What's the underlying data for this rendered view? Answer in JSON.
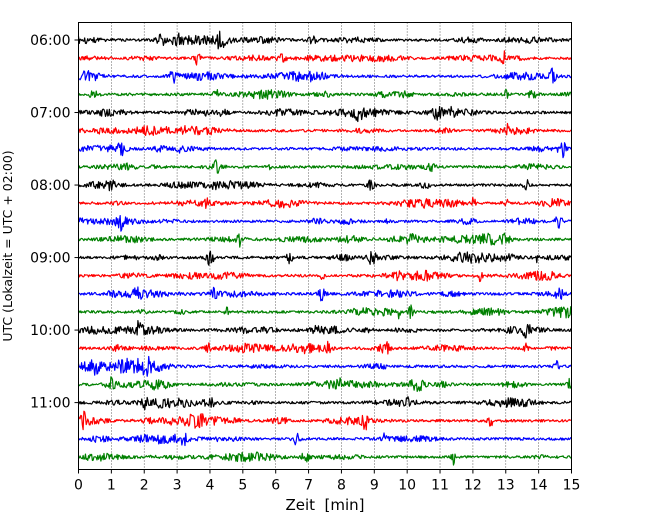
{
  "chart_data": {
    "type": "line",
    "title": "",
    "xlabel": "Zeit  [min]",
    "ylabel": "UTC (Lokalzeit = UTC + 02:00)",
    "xlim": [
      0,
      15
    ],
    "x_ticks": [
      0,
      1,
      2,
      3,
      4,
      5,
      6,
      7,
      8,
      9,
      10,
      11,
      12,
      13,
      14,
      15
    ],
    "x_tick_labels": [
      "0",
      "1",
      "2",
      "3",
      "4",
      "5",
      "6",
      "7",
      "8",
      "9",
      "10",
      "11",
      "12",
      "13",
      "14",
      "15"
    ],
    "y_tick_labels": [
      "06:00",
      "07:00",
      "08:00",
      "09:00",
      "10:00",
      "11:00"
    ],
    "trace_minutes": 15,
    "grid": {
      "x": true,
      "y": false,
      "style": "dotted"
    },
    "series_colors": [
      "#000000",
      "#ff0000",
      "#0000ff",
      "#008000"
    ],
    "traces": [
      {
        "start": "06:00",
        "events": [
          3.0,
          2.5,
          4.3,
          7.1
        ]
      },
      {
        "start": "06:15",
        "events": [
          3.6,
          12.9
        ]
      },
      {
        "start": "06:30",
        "events": [
          2.9,
          14.4
        ]
      },
      {
        "start": "06:45",
        "events": [
          4.2,
          13.0
        ]
      },
      {
        "start": "07:00",
        "events": [
          8.5,
          10.9,
          11.4
        ]
      },
      {
        "start": "07:15",
        "events": [
          3.2,
          13.0
        ]
      },
      {
        "start": "07:30",
        "events": [
          1.3,
          14.7
        ]
      },
      {
        "start": "07:45",
        "events": [
          4.2,
          5.8
        ]
      },
      {
        "start": "08:00",
        "events": [
          1.0,
          8.9,
          13.6
        ]
      },
      {
        "start": "08:15",
        "events": [
          3.9,
          12.0,
          13.0
        ]
      },
      {
        "start": "08:30",
        "events": [
          1.3,
          14.6
        ]
      },
      {
        "start": "08:45",
        "events": [
          4.9,
          9.5,
          13.0
        ]
      },
      {
        "start": "09:00",
        "events": [
          4.0,
          6.4,
          8.9,
          13.9
        ]
      },
      {
        "start": "09:15",
        "events": [
          7.4,
          12.2
        ]
      },
      {
        "start": "09:30",
        "events": [
          4.1,
          7.4,
          14.6
        ]
      },
      {
        "start": "09:45",
        "events": [
          4.5,
          9.7,
          10.1
        ]
      },
      {
        "start": "10:00",
        "events": [
          1.8,
          7.2,
          13.6
        ]
      },
      {
        "start": "10:15",
        "events": [
          4.0,
          7.6,
          9.3,
          13.6
        ]
      },
      {
        "start": "10:30",
        "events": [
          0.5,
          2.1,
          14.5
        ]
      },
      {
        "start": "10:45",
        "events": [
          1.0,
          7.9,
          10.3,
          14.9
        ]
      },
      {
        "start": "11:00",
        "events": [
          2.0,
          4.0,
          10.0
        ]
      },
      {
        "start": "11:15",
        "events": [
          0.1,
          4.8,
          8.7,
          12.5
        ]
      },
      {
        "start": "11:30",
        "events": [
          3.2,
          6.6,
          9.3
        ]
      },
      {
        "start": "11:45",
        "events": [
          6.9,
          11.4
        ]
      }
    ]
  }
}
